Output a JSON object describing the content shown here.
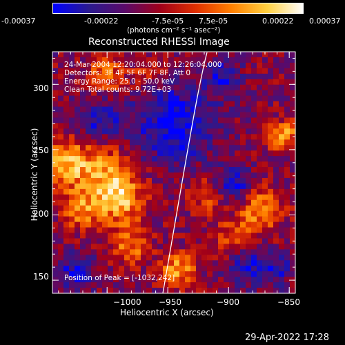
{
  "colorbar": {
    "tick_labels": [
      "-0.00037",
      "-0.00022",
      "-7.5e-05",
      "7.5e-05",
      "0.00022",
      "0.00037"
    ],
    "units": "(photons cm⁻² s⁻¹ asec⁻²)",
    "colormap": [
      "#0000ff",
      "#2a1a8f",
      "#5a0a6a",
      "#a0001a",
      "#e03000",
      "#ff8000",
      "#ffd040",
      "#ffffff"
    ]
  },
  "plot": {
    "title": "Reconstructed RHESSI Image",
    "xlabel": "Heliocentric X (arcsec)",
    "ylabel": "Heliocentric Y (arcsec)",
    "x_ticks": [
      "−1000",
      "−950",
      "−900",
      "−850"
    ],
    "x_tick_values": [
      -1000,
      -950,
      -900,
      -850
    ],
    "y_ticks": [
      "300",
      "250",
      "200",
      "150"
    ],
    "y_tick_values": [
      300,
      250,
      200,
      150
    ],
    "xlim": [
      -1045,
      -845
    ],
    "ylim": [
      140,
      325
    ],
    "annotations": {
      "time": "24-Mar-2004 12:20:04.000 to 12:26:04.000",
      "detectors": "Detectors: 3F 4F 5F 6F 7F 8F, Att 0",
      "energy": "Energy Range: 25.0 - 50.0 keV",
      "clean": "Clean     Total counts: 9.72E+03",
      "peak": "Position of Peak = [-1032,242]"
    }
  },
  "footer": {
    "timestamp": "29-Apr-2022 17:28"
  }
}
